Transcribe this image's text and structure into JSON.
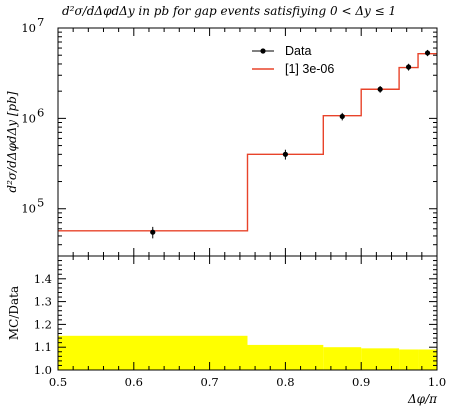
{
  "chart_data": [
    {
      "type": "line",
      "title": "d²σ/dΔφdΔy in pb for gap events satisfiying 0 < Δy ≤ 1",
      "ylabel": "d²σ/dΔφdΔy [pb]",
      "xlabel": "Δφ/π",
      "xlim": [
        0.5,
        1.0
      ],
      "ylim": [
        30000,
        10000000
      ],
      "yscale": "log",
      "legend_position": "top-right",
      "colors": {
        "data": "#000000",
        "mc": "#e8432a"
      },
      "series": [
        {
          "name": "Data",
          "x": [
            0.625,
            0.8,
            0.875,
            0.925,
            0.9625,
            0.9875
          ],
          "values": [
            55000,
            400000,
            1050000,
            2100000,
            3700000,
            5300000
          ],
          "errors": [
            8000,
            50000,
            100000,
            180000,
            320000,
            420000
          ]
        },
        {
          "name": "[1] 3e-06",
          "type": "step",
          "edges": [
            0.5,
            0.75,
            0.85,
            0.9,
            0.95,
            0.975,
            1.0
          ],
          "values": [
            57000,
            400000,
            1070000,
            2100000,
            3650000,
            5200000
          ]
        }
      ]
    },
    {
      "type": "area",
      "ylabel": "MC/Data",
      "xlabel": "Δφ/π",
      "xlim": [
        0.5,
        1.0
      ],
      "ylim": [
        1.0,
        1.5
      ],
      "colors": {
        "band": "#ffff00"
      },
      "series": [
        {
          "edges": [
            0.5,
            0.75,
            0.85,
            0.9,
            0.95,
            0.975,
            1.0
          ],
          "upper": [
            1.15,
            1.11,
            1.1,
            1.095,
            1.09,
            1.09
          ],
          "lower": [
            1.0,
            1.0,
            1.0,
            1.0,
            1.0,
            1.0
          ]
        }
      ]
    }
  ],
  "axis_labels": {
    "main_x_ticks": [
      "0.5",
      "0.6",
      "0.7",
      "0.8",
      "0.9",
      "1.0"
    ],
    "main_y_ticks": [
      {
        "base": "10",
        "exp": "5"
      },
      {
        "base": "10",
        "exp": "6"
      },
      {
        "base": "10",
        "exp": "7"
      }
    ],
    "ratio_y_ticks": [
      "1.0",
      "1.1",
      "1.2",
      "1.3",
      "1.4"
    ]
  }
}
